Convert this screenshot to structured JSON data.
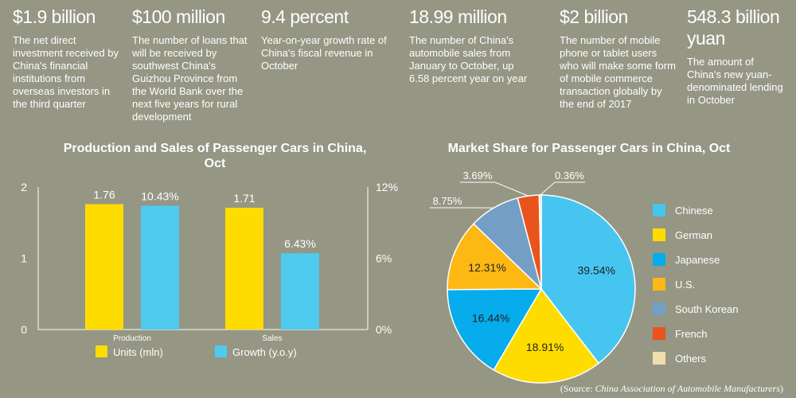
{
  "stats": [
    {
      "value": "$1.9 billion",
      "desc": "The net direct investment received by China's financial institutions from overseas investors in the third quarter"
    },
    {
      "value": "$100 million",
      "desc": "The number of loans that will be received by southwest China's Guizhou Province from the World Bank over the next five years for rural development"
    },
    {
      "value": "9.4 percent",
      "desc": "Year-on-year growth rate of China's fiscal revenue in October"
    },
    {
      "value": "18.99 million",
      "desc": "The number of China's automobile sales from January to October, up 6.58 percent year on year"
    },
    {
      "value": "$2 billion",
      "desc": "The number of mobile phone or tablet users who will make some form of mobile commerce transaction globally by the end of 2017"
    },
    {
      "value": "548.3 billion yuan",
      "desc": "The amount of China's new yuan-denominated lending in October"
    }
  ],
  "source": {
    "prefix": "(Source: ",
    "name": "China Association of Automobile Manufacturers",
    "suffix": ")"
  },
  "chart_data": [
    {
      "type": "bar",
      "title": "Production and Sales of Passenger Cars in China, Oct",
      "categories": [
        "Production",
        "Sales"
      ],
      "series": [
        {
          "name": "Units (mln)",
          "axis": "left",
          "values": [
            1.76,
            1.71
          ],
          "labels": [
            "1.76",
            "1.71"
          ],
          "color": "#FFDC00"
        },
        {
          "name": "Growth (y.o.y)",
          "axis": "right",
          "values": [
            10.43,
            6.43
          ],
          "labels": [
            "10.43%",
            "6.43%"
          ],
          "color": "#4FCBF0"
        }
      ],
      "y_left": {
        "range": [
          0,
          2
        ],
        "ticks": [
          "0",
          "1",
          "2"
        ]
      },
      "y_right": {
        "range": [
          0,
          12
        ],
        "ticks": [
          "0%",
          "6%",
          "12%"
        ]
      },
      "grid": false,
      "legend": "bottom"
    },
    {
      "type": "pie",
      "title": "Market Share for Passenger Cars in China, Oct",
      "slices": [
        {
          "name": "Chinese",
          "value": 39.54,
          "label": "39.54%",
          "color": "#47C5F1"
        },
        {
          "name": "German",
          "value": 18.91,
          "label": "18.91%",
          "color": "#FFDC00"
        },
        {
          "name": "Japanese",
          "value": 16.44,
          "label": "16.44%",
          "color": "#06ACEC"
        },
        {
          "name": "U.S.",
          "value": 12.31,
          "label": "12.31%",
          "color": "#FDB813"
        },
        {
          "name": "South Korean",
          "value": 8.75,
          "label": "8.75%",
          "color": "#739FC6"
        },
        {
          "name": "French",
          "value": 3.69,
          "label": "3.69%",
          "color": "#E8541C"
        },
        {
          "name": "Others",
          "value": 0.36,
          "label": "0.36%",
          "color": "#F2DDB0"
        }
      ],
      "legend": "right"
    }
  ]
}
